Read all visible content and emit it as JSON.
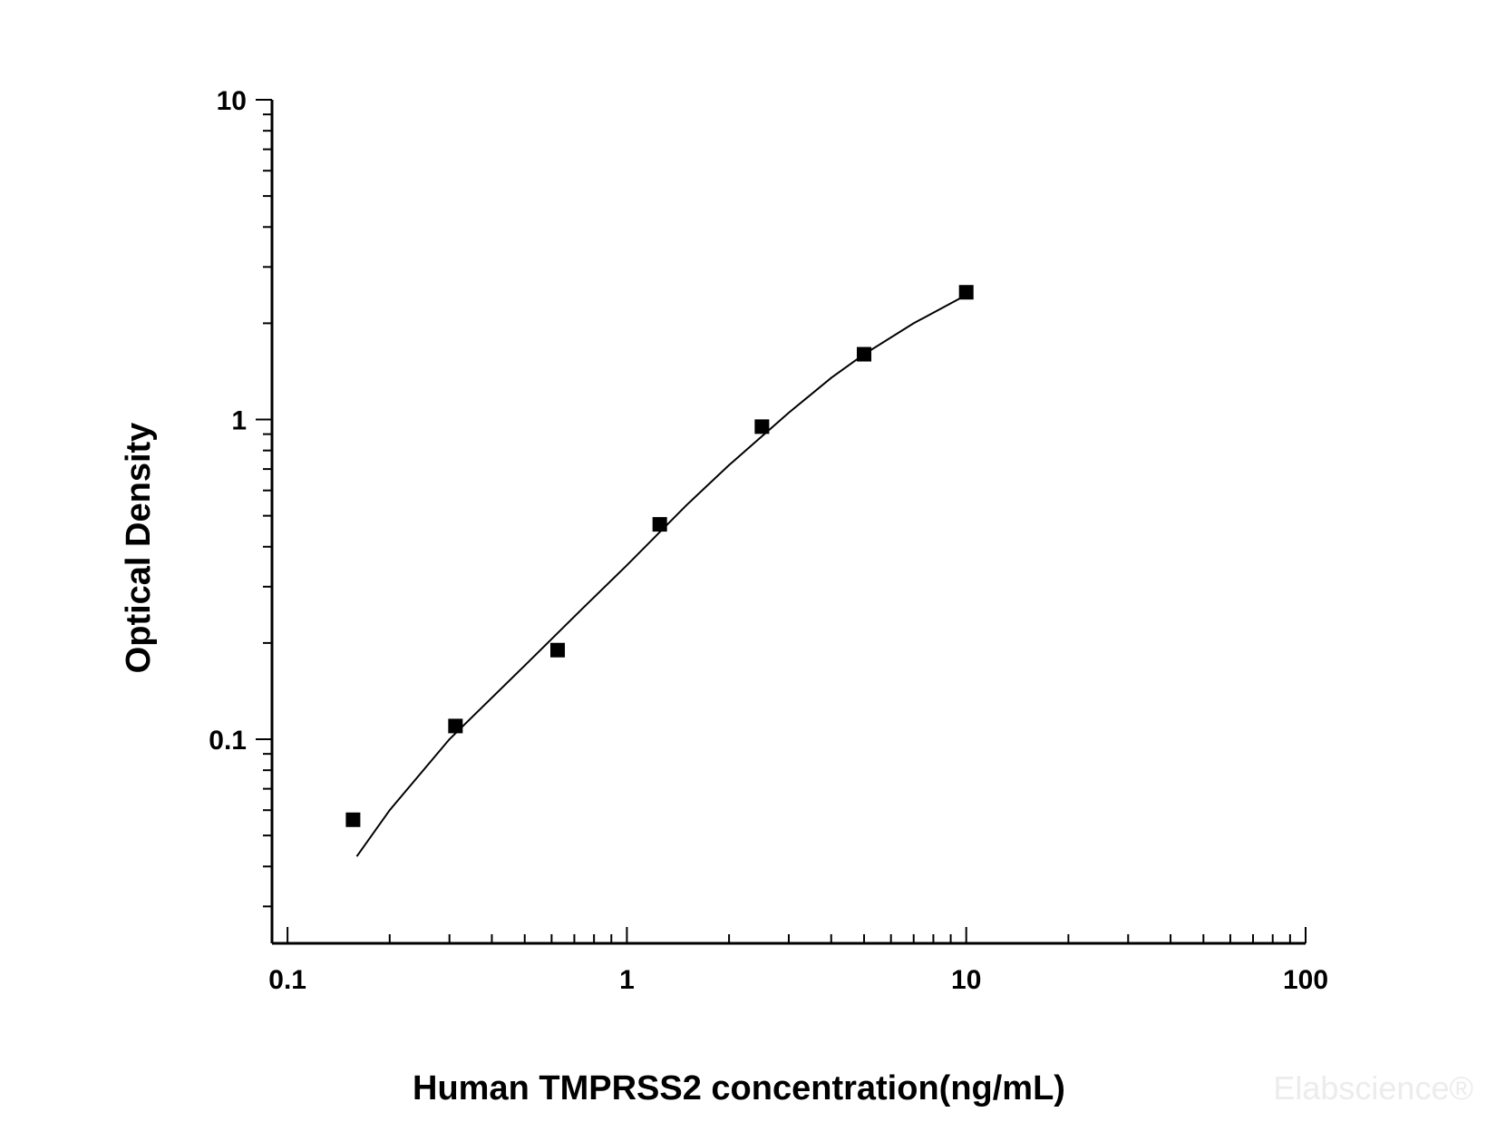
{
  "chart_data": {
    "type": "scatter",
    "title": "",
    "xlabel": "Human TMPRSS2 concentration(ng/mL)",
    "ylabel": "Optical Density",
    "x_scale": "log",
    "y_scale": "log",
    "xlim": [
      0.09,
      100
    ],
    "ylim": [
      0.023,
      10
    ],
    "x_ticks": [
      {
        "value": 0.1,
        "label": "0.1"
      },
      {
        "value": 1,
        "label": "1"
      },
      {
        "value": 10,
        "label": "10"
      },
      {
        "value": 100,
        "label": "100"
      }
    ],
    "y_ticks": [
      {
        "value": 0.1,
        "label": "0.1"
      },
      {
        "value": 1,
        "label": "1"
      },
      {
        "value": 10,
        "label": "10"
      }
    ],
    "grid": false,
    "legend": "none",
    "series": [
      {
        "type": "scatter",
        "marker": "square",
        "x": [
          0.156,
          0.3125,
          0.625,
          1.25,
          2.5,
          5,
          10
        ],
        "y": [
          0.056,
          0.11,
          0.19,
          0.47,
          0.95,
          1.6,
          2.5
        ]
      },
      {
        "type": "line",
        "x": [
          0.16,
          0.2,
          0.3,
          0.5,
          0.75,
          1,
          1.5,
          2,
          3,
          4,
          5,
          7,
          10
        ],
        "y": [
          0.043,
          0.06,
          0.1,
          0.17,
          0.26,
          0.35,
          0.54,
          0.72,
          1.05,
          1.35,
          1.6,
          2.0,
          2.45
        ]
      }
    ],
    "colors": {
      "axis": "#000000",
      "marker": "#000000",
      "line": "#000000"
    }
  },
  "watermark": "Elabscience®"
}
